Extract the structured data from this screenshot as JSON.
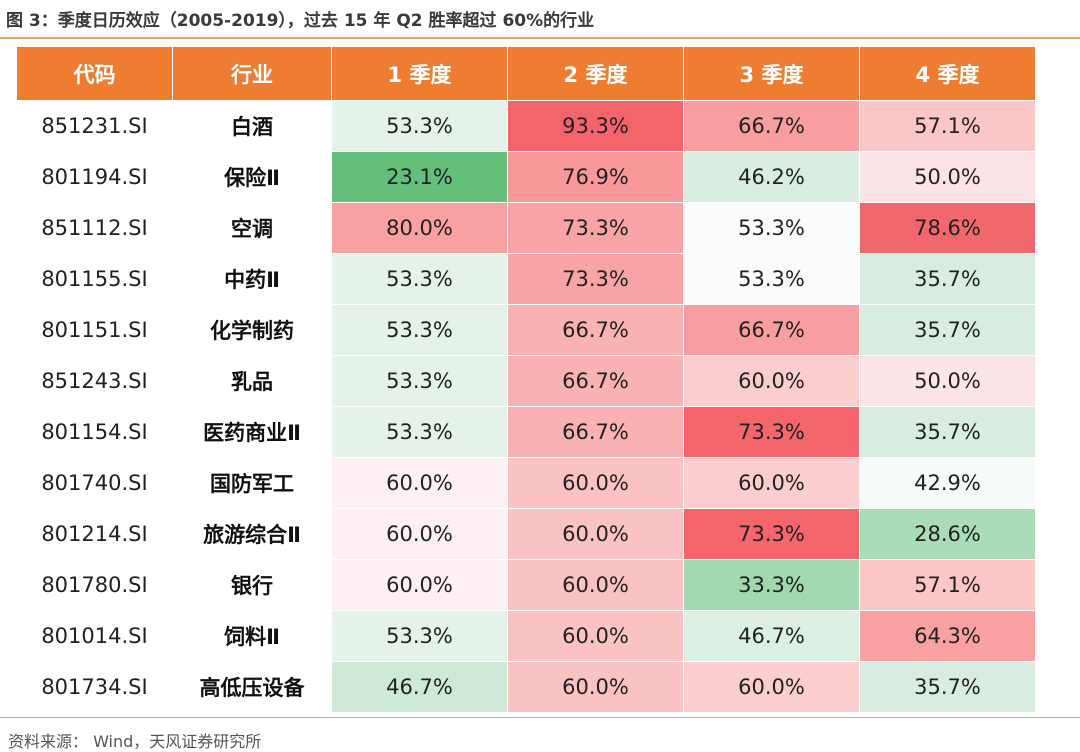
{
  "figure": {
    "title": "图 3：季度日历效应（2005-2019），过去 15 年 Q2 胜率超过 60%的行业",
    "source": "资料来源： Wind，天风证券研究所"
  },
  "chart_data": {
    "type": "table",
    "columns": [
      "代码",
      "行业",
      "1 季度",
      "2 季度",
      "3 季度",
      "4 季度"
    ],
    "rows": [
      {
        "code": "851231.SI",
        "industry": "白酒",
        "values": [
          "53.3%",
          "93.3%",
          "66.7%",
          "57.1%"
        ],
        "colors": [
          "#e5f2ea",
          "#f4646a",
          "#f89ea0",
          "#fbc6c7"
        ]
      },
      {
        "code": "801194.SI",
        "industry": "保险Ⅱ",
        "values": [
          "23.1%",
          "76.9%",
          "46.2%",
          "50.0%"
        ],
        "colors": [
          "#64bf7b",
          "#f8989b",
          "#d9eee0",
          "#fce4e6"
        ]
      },
      {
        "code": "851112.SI",
        "industry": "空调",
        "values": [
          "80.0%",
          "73.3%",
          "53.3%",
          "78.6%"
        ],
        "colors": [
          "#f7a1a3",
          "#f8a3a5",
          "#f9fcfa",
          "#f2676c"
        ]
      },
      {
        "code": "801155.SI",
        "industry": "中药Ⅱ",
        "values": [
          "53.3%",
          "73.3%",
          "53.3%",
          "35.7%"
        ],
        "colors": [
          "#e5f2ea",
          "#f8a3a5",
          "#f9fcfa",
          "#d8eddf"
        ]
      },
      {
        "code": "801151.SI",
        "industry": "化学制药",
        "values": [
          "53.3%",
          "66.7%",
          "66.7%",
          "35.7%"
        ],
        "colors": [
          "#e5f2ea",
          "#f9b2b4",
          "#f89ea0",
          "#d8eddf"
        ]
      },
      {
        "code": "851243.SI",
        "industry": "乳品",
        "values": [
          "53.3%",
          "66.7%",
          "60.0%",
          "50.0%"
        ],
        "colors": [
          "#e5f2ea",
          "#f9b2b4",
          "#fbcdcf",
          "#fce4e6"
        ]
      },
      {
        "code": "801154.SI",
        "industry": "医药商业Ⅱ",
        "values": [
          "53.3%",
          "66.7%",
          "73.3%",
          "35.7%"
        ],
        "colors": [
          "#e5f2ea",
          "#f9b2b4",
          "#f4666b",
          "#d8eddf"
        ]
      },
      {
        "code": "801740.SI",
        "industry": "国防军工",
        "values": [
          "60.0%",
          "60.0%",
          "60.0%",
          "42.9%"
        ],
        "colors": [
          "#fcf0f2",
          "#fbc2c4",
          "#fbcdcf",
          "#f6faf8"
        ]
      },
      {
        "code": "801214.SI",
        "industry": "旅游综合Ⅱ",
        "values": [
          "60.0%",
          "60.0%",
          "73.3%",
          "28.6%"
        ],
        "colors": [
          "#fcf0f2",
          "#fbc2c4",
          "#f4666b",
          "#a9dcb7"
        ]
      },
      {
        "code": "801780.SI",
        "industry": "银行",
        "values": [
          "60.0%",
          "60.0%",
          "33.3%",
          "57.1%"
        ],
        "colors": [
          "#fcf0f2",
          "#fbc2c4",
          "#a1d8b0",
          "#fbc6c7"
        ]
      },
      {
        "code": "801014.SI",
        "industry": "饲料Ⅱ",
        "values": [
          "53.3%",
          "60.0%",
          "46.7%",
          "64.3%"
        ],
        "colors": [
          "#e5f2ea",
          "#fbc2c4",
          "#dcefe3",
          "#f8a0a2"
        ]
      },
      {
        "code": "801734.SI",
        "industry": "高低压设备",
        "values": [
          "46.7%",
          "60.0%",
          "60.0%",
          "35.7%"
        ],
        "colors": [
          "#cfe9d7",
          "#fbc2c4",
          "#fbcdcf",
          "#d8eddf"
        ]
      }
    ]
  }
}
